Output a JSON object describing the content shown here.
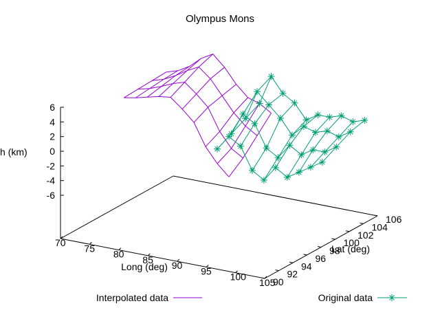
{
  "chart_data": {
    "type": "surface3d",
    "title": "Olympus Mons",
    "xlabel": "Long (deg)",
    "ylabel": "Lat (deg)",
    "zlabel": "h (km)",
    "xlim": [
      70,
      105
    ],
    "ylim": [
      90,
      106
    ],
    "zlim": [
      -6,
      6
    ],
    "x_ticks": [
      "70",
      "75",
      "80",
      "85",
      "90",
      "95",
      "100",
      "105"
    ],
    "y_ticks": [
      "90",
      "92",
      "94",
      "96",
      "98",
      "100",
      "102",
      "104",
      "106"
    ],
    "z_ticks": [
      "6",
      "4",
      "2",
      "0",
      "-2",
      "-4",
      "-6"
    ],
    "legend_placement": "bottom",
    "series": [
      {
        "name": "Interpolated data",
        "color": "#9400d3",
        "style": "lines",
        "longitude": [
          70,
          72,
          74,
          76,
          78,
          80,
          82,
          84,
          86,
          88
        ],
        "latitude": [
          99,
          101,
          103,
          105
        ],
        "height": [
          [
            2.5,
            2.6,
            2.7,
            2.8
          ],
          [
            2.8,
            3.0,
            3.2,
            3.3
          ],
          [
            3.2,
            3.6,
            4.0,
            4.2
          ],
          [
            3.6,
            4.3,
            5.0,
            5.6
          ],
          [
            3.8,
            4.8,
            5.8,
            6.5
          ],
          [
            2.5,
            3.5,
            4.5,
            5.0
          ],
          [
            1.0,
            2.0,
            2.5,
            3.0
          ],
          [
            -2.0,
            -1.0,
            0.5,
            1.5
          ],
          [
            -4.0,
            -3.0,
            -1.0,
            1.0
          ],
          [
            -5.5,
            -4.0,
            -2.0,
            0.0
          ]
        ]
      },
      {
        "name": "Original data",
        "color": "#009e73",
        "style": "linespoints",
        "longitude": [
          86,
          88,
          90,
          92,
          94,
          96,
          98,
          100,
          102,
          104
        ],
        "latitude": [
          99,
          101,
          103,
          105
        ],
        "height": [
          [
            -2,
            -1,
            0,
            1
          ],
          [
            0,
            2,
            4,
            5
          ],
          [
            -1,
            1,
            2.5,
            3
          ],
          [
            -4,
            -2,
            1,
            2
          ],
          [
            -5,
            -3,
            -1,
            0
          ],
          [
            -3,
            -1,
            0.5,
            1
          ],
          [
            -4,
            -2,
            0,
            1
          ],
          [
            -3,
            -1,
            0.5,
            1.5
          ],
          [
            -2,
            -1,
            0,
            1
          ],
          [
            -1,
            0,
            1,
            1.5
          ]
        ]
      }
    ]
  }
}
